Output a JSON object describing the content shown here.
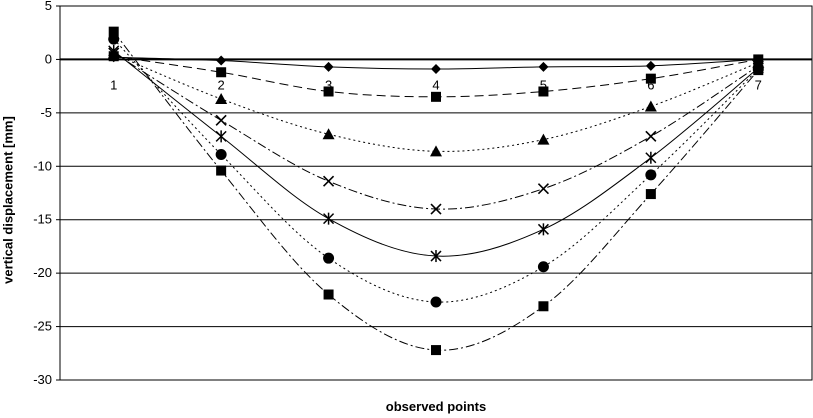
{
  "chart_data": {
    "type": "line",
    "title": "",
    "xlabel": "observed points",
    "ylabel": "vertical displacement [mm]",
    "x": [
      1,
      2,
      3,
      4,
      5,
      6,
      7
    ],
    "x_tick_labels": [
      "1",
      "2",
      "3",
      "4",
      "5",
      "6",
      "7"
    ],
    "ylim": [
      -30,
      5
    ],
    "y_ticks": [
      5,
      0,
      -5,
      -10,
      -15,
      -20,
      -25,
      -30
    ],
    "y_tick_labels": [
      "5",
      "0",
      "-5",
      "-10",
      "-15",
      "-20",
      "-25",
      "-30"
    ],
    "grid": true,
    "legend": "none",
    "series": [
      {
        "marker": "diamond",
        "line": "solid",
        "values": [
          0.2,
          -0.1,
          -0.7,
          -0.9,
          -0.7,
          -0.6,
          0.0
        ]
      },
      {
        "marker": "square",
        "line": "dashed",
        "values": [
          0.3,
          -1.2,
          -3.0,
          -3.5,
          -3.0,
          -1.8,
          0.0
        ]
      },
      {
        "marker": "triangle",
        "line": "dotted",
        "values": [
          0.5,
          -3.7,
          -7.0,
          -8.6,
          -7.5,
          -4.4,
          -0.3
        ]
      },
      {
        "marker": "x",
        "line": "dashdot",
        "values": [
          0.6,
          -5.7,
          -11.4,
          -14.0,
          -12.1,
          -7.2,
          -0.6
        ]
      },
      {
        "marker": "star",
        "line": "solid",
        "values": [
          0.8,
          -7.2,
          -14.9,
          -18.4,
          -15.9,
          -9.2,
          -0.8
        ]
      },
      {
        "marker": "circle",
        "line": "dotted",
        "values": [
          1.9,
          -8.9,
          -18.6,
          -22.7,
          -19.4,
          -10.8,
          -0.9
        ]
      },
      {
        "marker": "square",
        "line": "dashdot",
        "values": [
          2.6,
          -10.4,
          -22.0,
          -27.2,
          -23.1,
          -12.6,
          -1.0
        ]
      }
    ]
  }
}
